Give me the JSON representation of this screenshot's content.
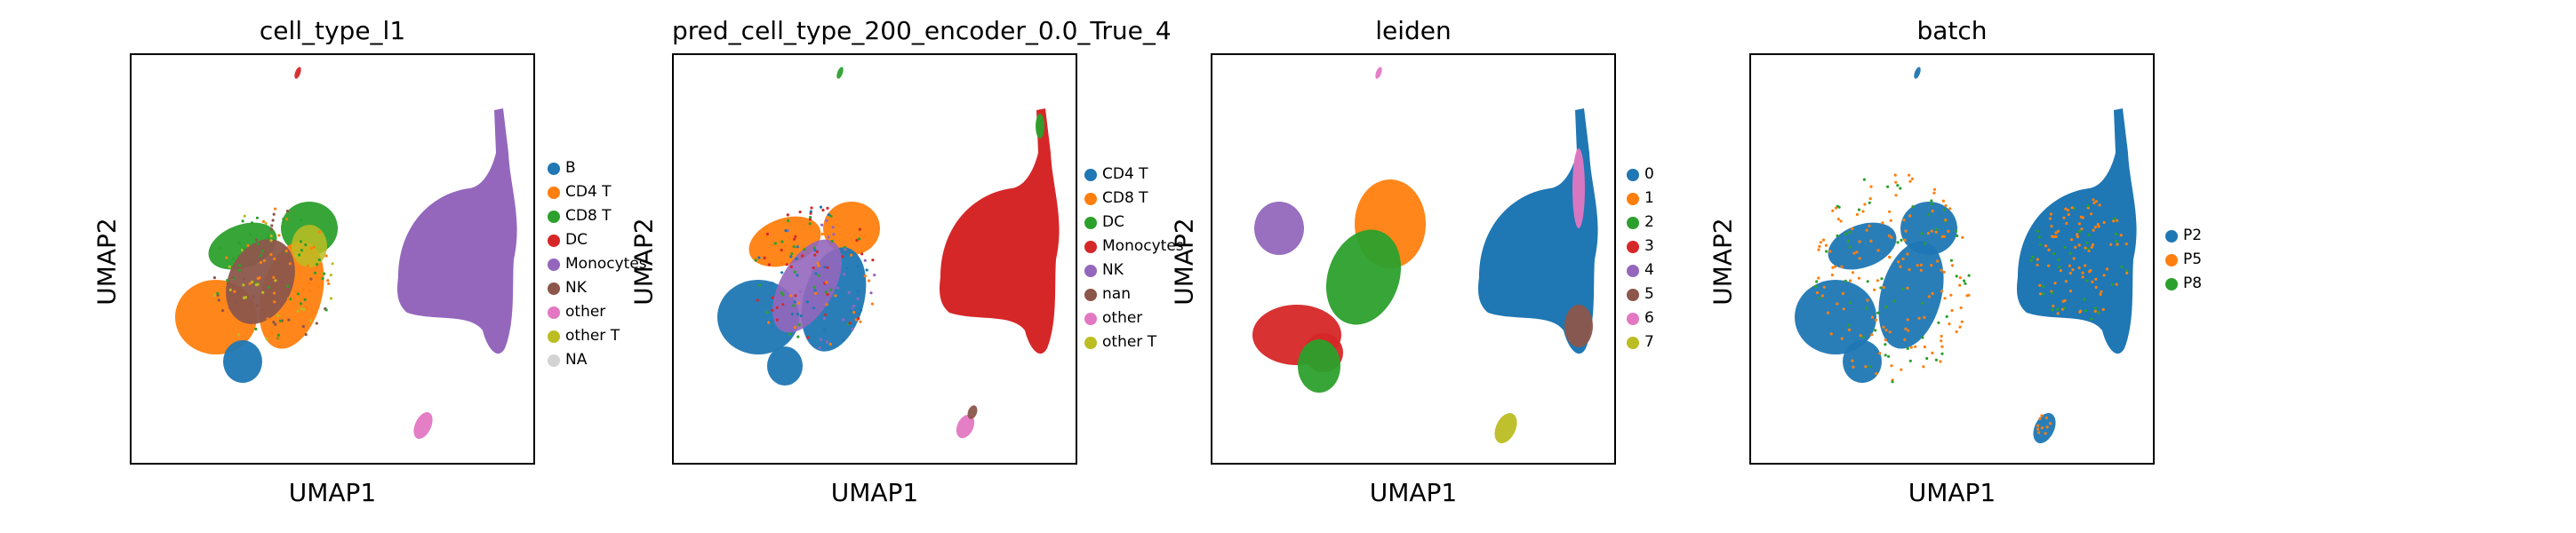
{
  "colors": {
    "blue": "#1f77b4",
    "orange": "#ff7f0e",
    "green": "#2ca02c",
    "red": "#d62728",
    "purple": "#9467bd",
    "brown": "#8c564b",
    "pink": "#e377c2",
    "olive": "#bcbd22",
    "lightgray": "#d3d3d3"
  },
  "chart_data": [
    {
      "type": "scatter",
      "title": "cell_type_l1",
      "xlabel": "UMAP1",
      "ylabel": "UMAP2",
      "legend_position": "right",
      "axes_ticks": false,
      "legend": [
        {
          "label": "B",
          "color": "#1f77b4"
        },
        {
          "label": "CD4 T",
          "color": "#ff7f0e"
        },
        {
          "label": "CD8 T",
          "color": "#2ca02c"
        },
        {
          "label": "DC",
          "color": "#d62728"
        },
        {
          "label": "Monocytes",
          "color": "#9467bd"
        },
        {
          "label": "NK",
          "color": "#8c564b"
        },
        {
          "label": "other",
          "color": "#e377c2"
        },
        {
          "label": "other T",
          "color": "#bcbd22"
        },
        {
          "label": "NA",
          "color": "#d3d3d3"
        }
      ]
    },
    {
      "type": "scatter",
      "title": "pred_cell_type_200_encoder_0.0_True_4",
      "xlabel": "UMAP1",
      "ylabel": "UMAP2",
      "legend_position": "right",
      "axes_ticks": false,
      "legend": [
        {
          "label": "CD4 T",
          "color": "#1f77b4"
        },
        {
          "label": "CD8 T",
          "color": "#ff7f0e"
        },
        {
          "label": "DC",
          "color": "#2ca02c"
        },
        {
          "label": "Monocytes",
          "color": "#d62728"
        },
        {
          "label": "NK",
          "color": "#9467bd"
        },
        {
          "label": "nan",
          "color": "#8c564b"
        },
        {
          "label": "other",
          "color": "#e377c2"
        },
        {
          "label": "other T",
          "color": "#bcbd22"
        }
      ]
    },
    {
      "type": "scatter",
      "title": "leiden",
      "xlabel": "UMAP1",
      "ylabel": "UMAP2",
      "legend_position": "right",
      "axes_ticks": false,
      "legend": [
        {
          "label": "0",
          "color": "#1f77b4"
        },
        {
          "label": "1",
          "color": "#ff7f0e"
        },
        {
          "label": "2",
          "color": "#2ca02c"
        },
        {
          "label": "3",
          "color": "#d62728"
        },
        {
          "label": "4",
          "color": "#9467bd"
        },
        {
          "label": "5",
          "color": "#8c564b"
        },
        {
          "label": "6",
          "color": "#e377c2"
        },
        {
          "label": "7",
          "color": "#bcbd22"
        }
      ]
    },
    {
      "type": "scatter",
      "title": "batch",
      "xlabel": "UMAP1",
      "ylabel": "UMAP2",
      "legend_position": "right",
      "axes_ticks": false,
      "legend": [
        {
          "label": "P2",
          "color": "#1f77b4"
        },
        {
          "label": "P5",
          "color": "#ff7f0e"
        },
        {
          "label": "P8",
          "color": "#2ca02c"
        }
      ]
    }
  ]
}
